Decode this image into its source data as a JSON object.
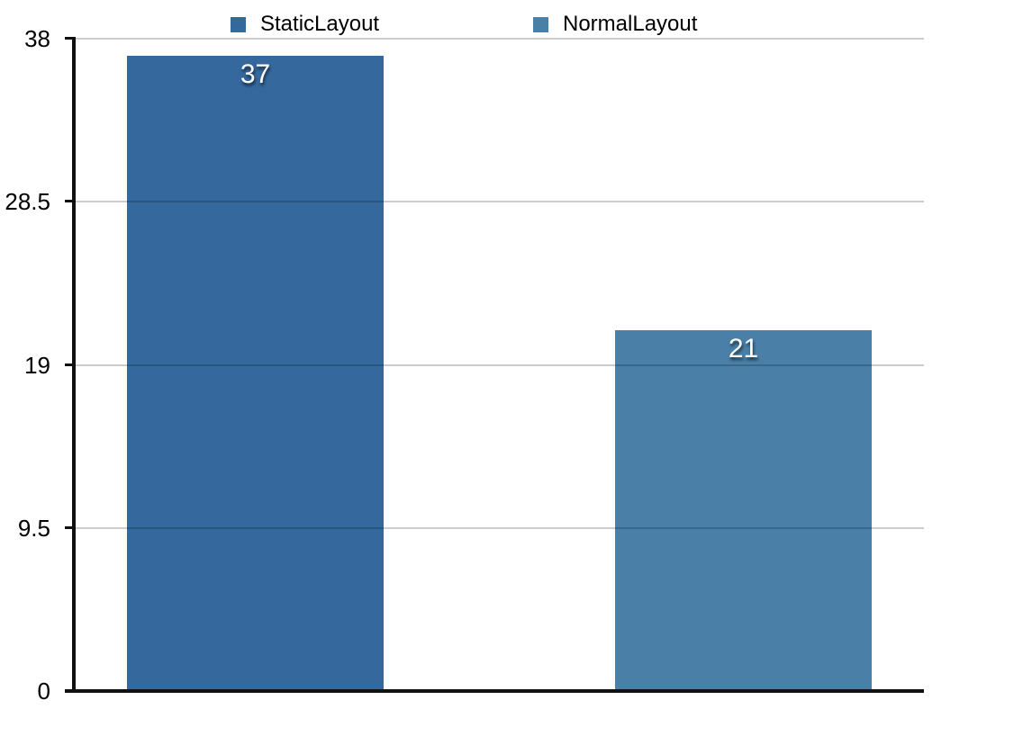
{
  "chart_data": {
    "type": "bar",
    "title": "",
    "xlabel": "",
    "ylabel": "",
    "series": [
      {
        "name": "StaticLayout",
        "value": 37,
        "label": "37",
        "color": "#35699D"
      },
      {
        "name": "NormalLayout",
        "value": 21,
        "label": "21",
        "color": "#4A80A8"
      }
    ],
    "ylim": [
      0,
      38
    ],
    "yticks": [
      0,
      9.5,
      19,
      28.5,
      38
    ],
    "ytick_labels": [
      "0",
      "9.5",
      "19",
      "28.5",
      "38"
    ],
    "grid": true,
    "gridline_color": "#cccccc",
    "axis_color": "#111111",
    "background_color": "#ffffff",
    "bar_label_color": "#ffffff",
    "legend_position": "top"
  }
}
